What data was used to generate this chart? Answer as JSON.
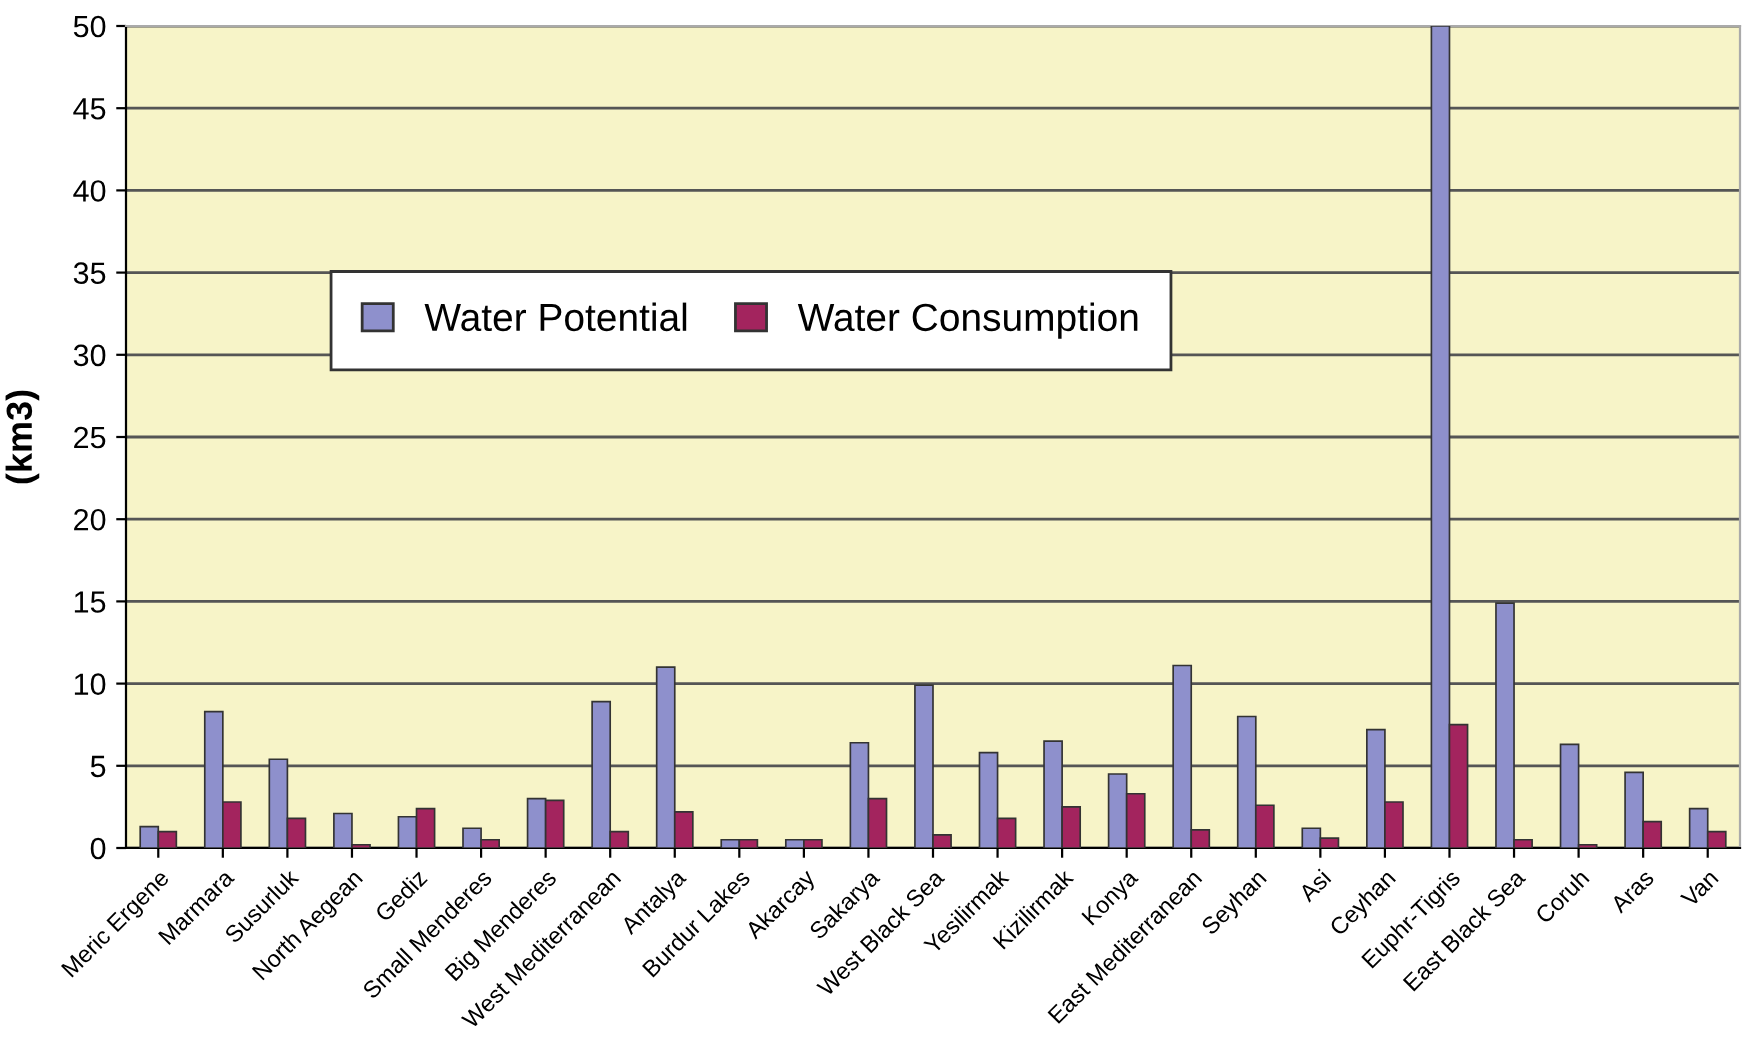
{
  "chart_data": {
    "type": "bar",
    "ylabel": "(km3)",
    "categories": [
      "Meric Ergene",
      "Marmara",
      "Susurluk",
      "North Aegean",
      "Gediz",
      "Small Menderes",
      "Big Menderes",
      "West Mediterranean",
      "Antalya",
      "Burdur Lakes",
      "Akarcay",
      "Sakarya",
      "West Black Sea",
      "Yesilirmak",
      "Kizilirmak",
      "Konya",
      "East Mediterranean",
      "Seyhan",
      "Asi",
      "Ceyhan",
      "Euphr-Tigris",
      "East Black Sea",
      "Coruh",
      "Aras",
      "Van"
    ],
    "series": [
      {
        "name": "Water Potential",
        "color": "#8e90cc",
        "values": [
          1.3,
          8.3,
          5.4,
          2.1,
          1.9,
          1.2,
          3.0,
          8.9,
          11.0,
          0.5,
          0.5,
          6.4,
          9.9,
          5.8,
          6.5,
          4.5,
          11.1,
          8.0,
          1.2,
          7.2,
          50,
          14.9,
          6.3,
          4.6,
          2.4
        ]
      },
      {
        "name": "Water Consumption",
        "color": "#a3245e",
        "values": [
          1.0,
          2.8,
          1.8,
          0.2,
          2.4,
          0.5,
          2.9,
          1.0,
          2.2,
          0.5,
          0.5,
          3.0,
          0.8,
          1.8,
          2.5,
          3.3,
          1.1,
          2.6,
          0.6,
          2.8,
          7.5,
          0.5,
          0.2,
          1.6,
          1.0
        ]
      }
    ],
    "ylim": [
      0,
      50
    ],
    "yticks": [
      0,
      5,
      10,
      15,
      20,
      25,
      30,
      35,
      40,
      45,
      50
    ],
    "grid": "y",
    "legend": "top left"
  }
}
